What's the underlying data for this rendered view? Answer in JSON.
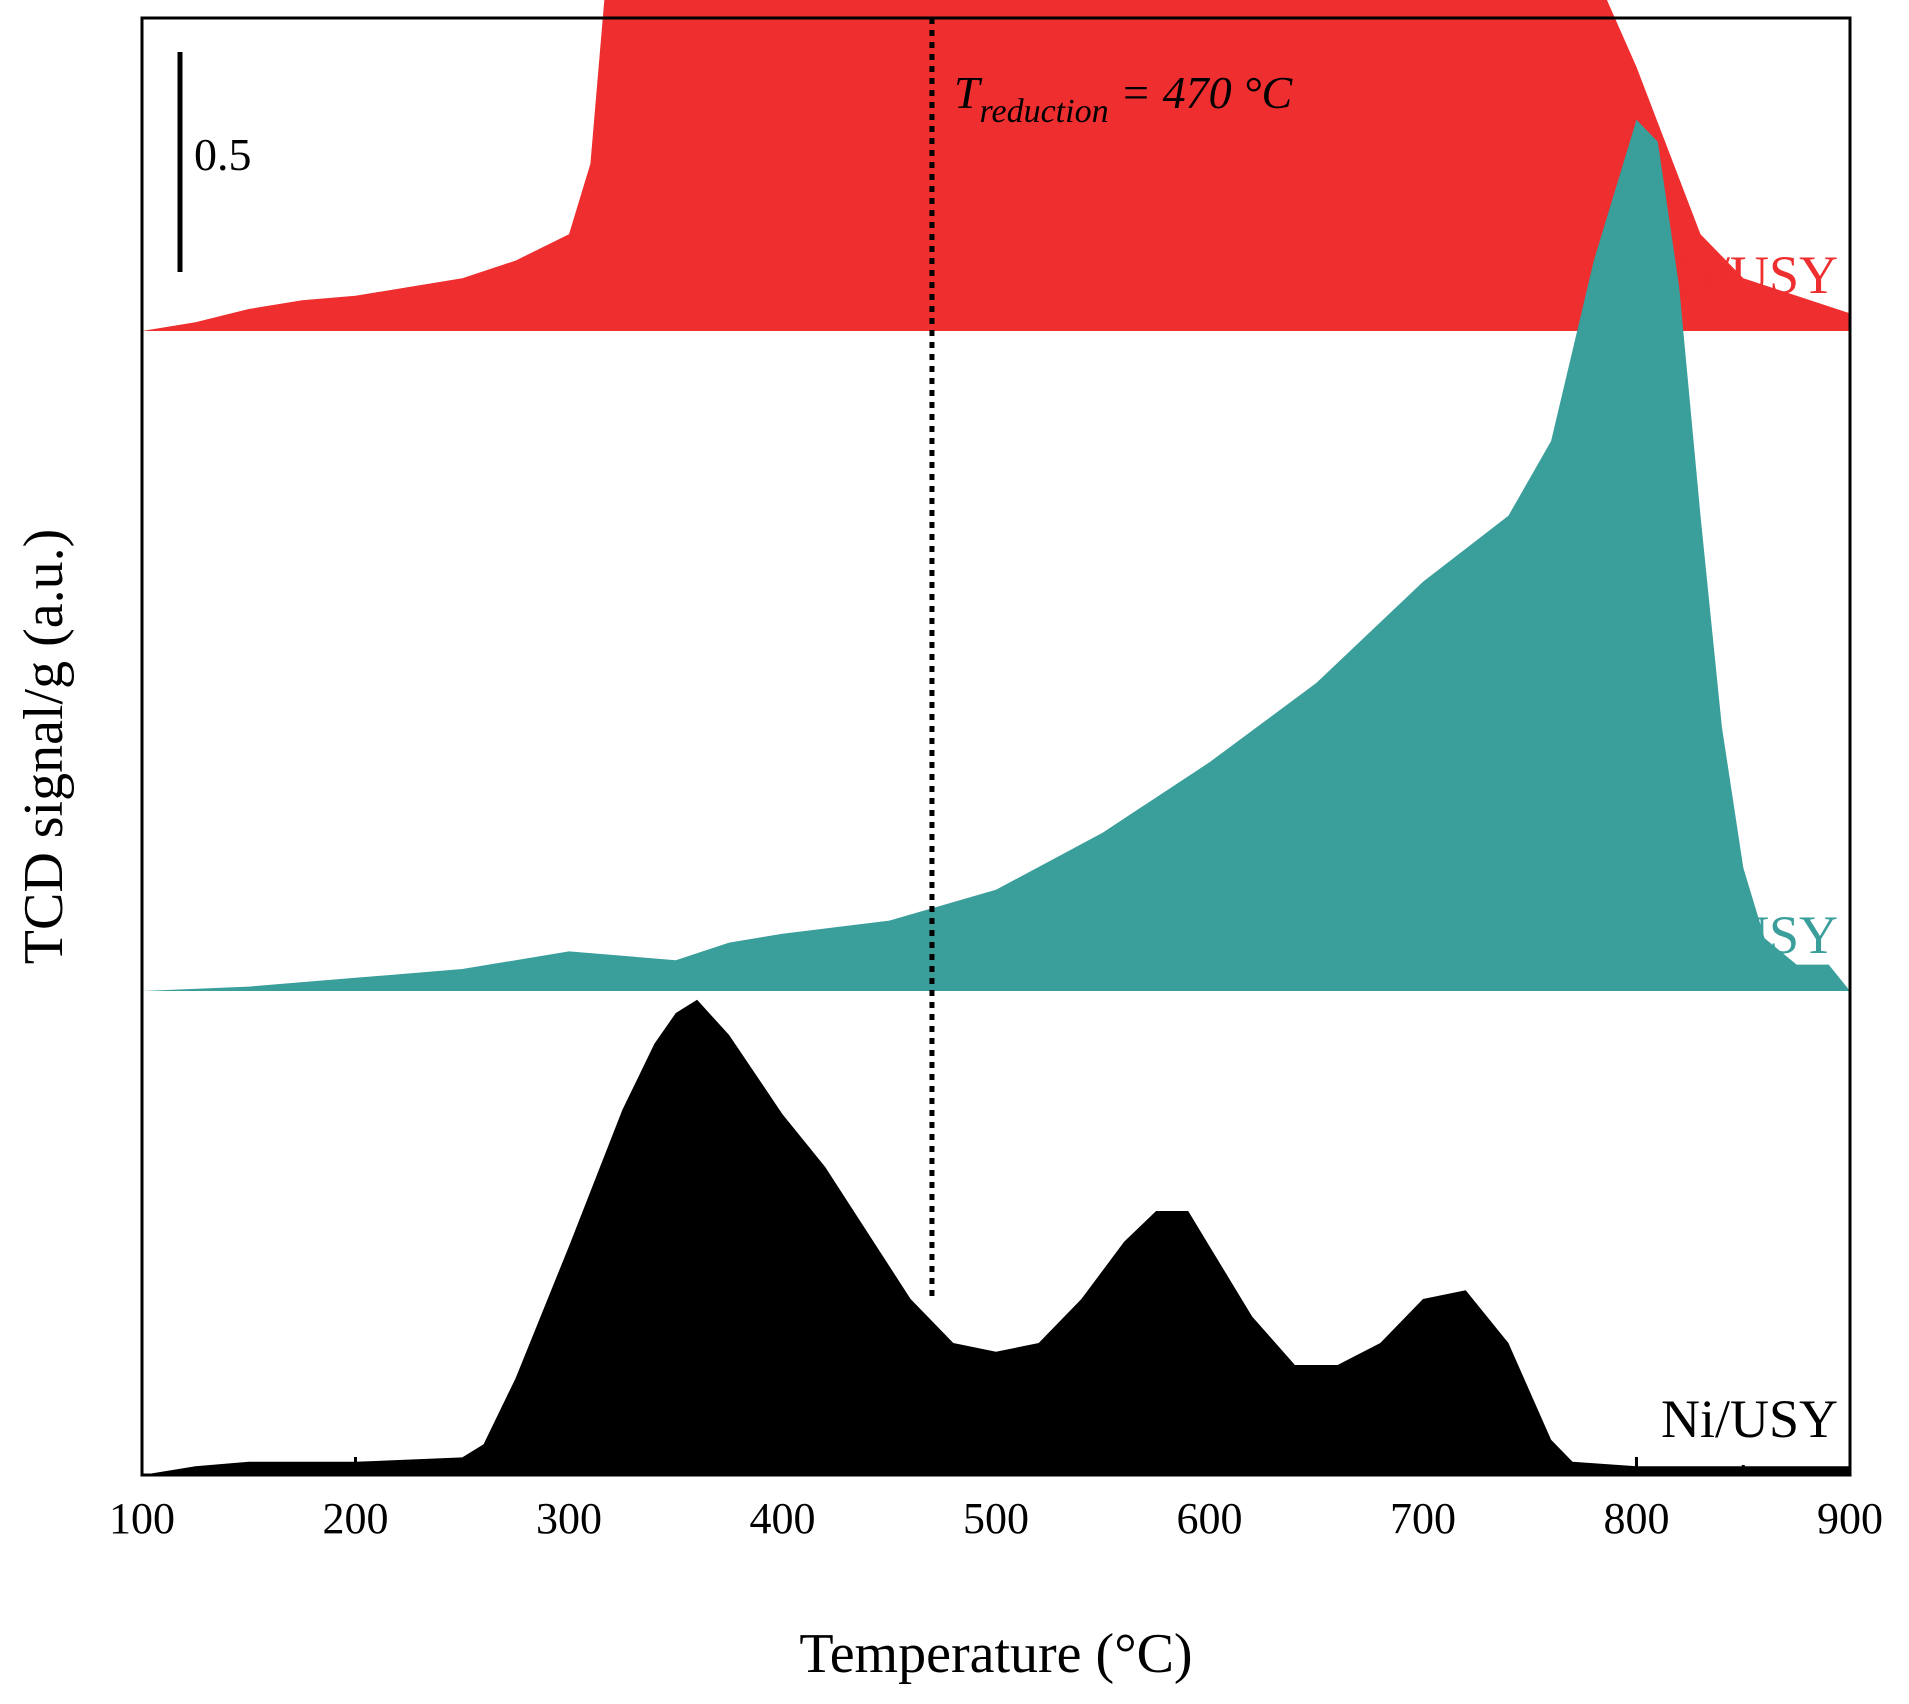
{
  "chart_data": {
    "type": "area",
    "title": "",
    "xlabel": "Temperature (°C)",
    "ylabel": "TCD signal/g (a.u.)",
    "xlim": [
      100,
      900
    ],
    "xticks": [
      100,
      200,
      300,
      400,
      500,
      600,
      700,
      800,
      900
    ],
    "yticks_shown": false,
    "grid": false,
    "legend": "inline labels at right",
    "scale_bar": {
      "label": "0.5",
      "value": 0.5
    },
    "annotations": [
      {
        "type": "vline",
        "x": 470,
        "style": "dotted",
        "label_prefix": "T",
        "label_sub": "reduction",
        "label_suffix": " = 470 °C"
      }
    ],
    "series": [
      {
        "name": "Ni-Ca/USY",
        "color": "#ee2e2f",
        "offset": 2.6,
        "x": [
          100,
          125,
          150,
          175,
          200,
          225,
          250,
          275,
          300,
          310,
          320,
          330,
          340,
          350,
          360,
          370,
          380,
          400,
          420,
          440,
          460,
          480,
          500,
          520,
          550,
          600,
          650,
          700,
          730,
          760,
          780,
          800,
          830,
          850,
          875,
          900
        ],
        "y": [
          0.0,
          0.02,
          0.05,
          0.07,
          0.08,
          0.1,
          0.12,
          0.16,
          0.22,
          0.38,
          0.95,
          1.25,
          1.5,
          1.95,
          2.3,
          2.42,
          2.38,
          2.15,
          1.85,
          1.62,
          1.33,
          1.05,
          0.92,
          0.9,
          0.92,
          0.9,
          0.95,
          1.18,
          1.18,
          1.05,
          0.82,
          0.6,
          0.22,
          0.12,
          0.08,
          0.04
        ]
      },
      {
        "name": "Ni-Mg/USY",
        "color": "#3a9e9b",
        "offset": 1.1,
        "x": [
          100,
          150,
          200,
          250,
          275,
          300,
          325,
          350,
          375,
          400,
          450,
          500,
          550,
          600,
          650,
          700,
          740,
          760,
          780,
          800,
          810,
          820,
          830,
          840,
          850,
          860,
          875,
          890,
          900
        ],
        "y": [
          0.0,
          0.01,
          0.03,
          0.05,
          0.07,
          0.09,
          0.08,
          0.07,
          0.11,
          0.13,
          0.16,
          0.23,
          0.36,
          0.52,
          0.7,
          0.93,
          1.08,
          1.25,
          1.66,
          1.98,
          1.93,
          1.6,
          1.08,
          0.6,
          0.28,
          0.12,
          0.06,
          0.06,
          0.0
        ]
      },
      {
        "name": "Ni/USY",
        "color": "#000000",
        "offset": 0.0,
        "x": [
          100,
          125,
          150,
          200,
          250,
          260,
          275,
          300,
          325,
          340,
          350,
          360,
          375,
          400,
          420,
          440,
          460,
          480,
          500,
          520,
          540,
          560,
          575,
          590,
          600,
          620,
          640,
          660,
          680,
          700,
          720,
          740,
          760,
          770,
          800,
          850,
          900
        ],
        "y": [
          0.0,
          0.02,
          0.03,
          0.03,
          0.04,
          0.07,
          0.22,
          0.52,
          0.83,
          0.98,
          1.05,
          1.08,
          1.0,
          0.82,
          0.7,
          0.55,
          0.4,
          0.3,
          0.28,
          0.3,
          0.4,
          0.53,
          0.6,
          0.6,
          0.52,
          0.36,
          0.25,
          0.25,
          0.3,
          0.4,
          0.42,
          0.3,
          0.08,
          0.03,
          0.02,
          0.02,
          0.02
        ]
      }
    ]
  }
}
